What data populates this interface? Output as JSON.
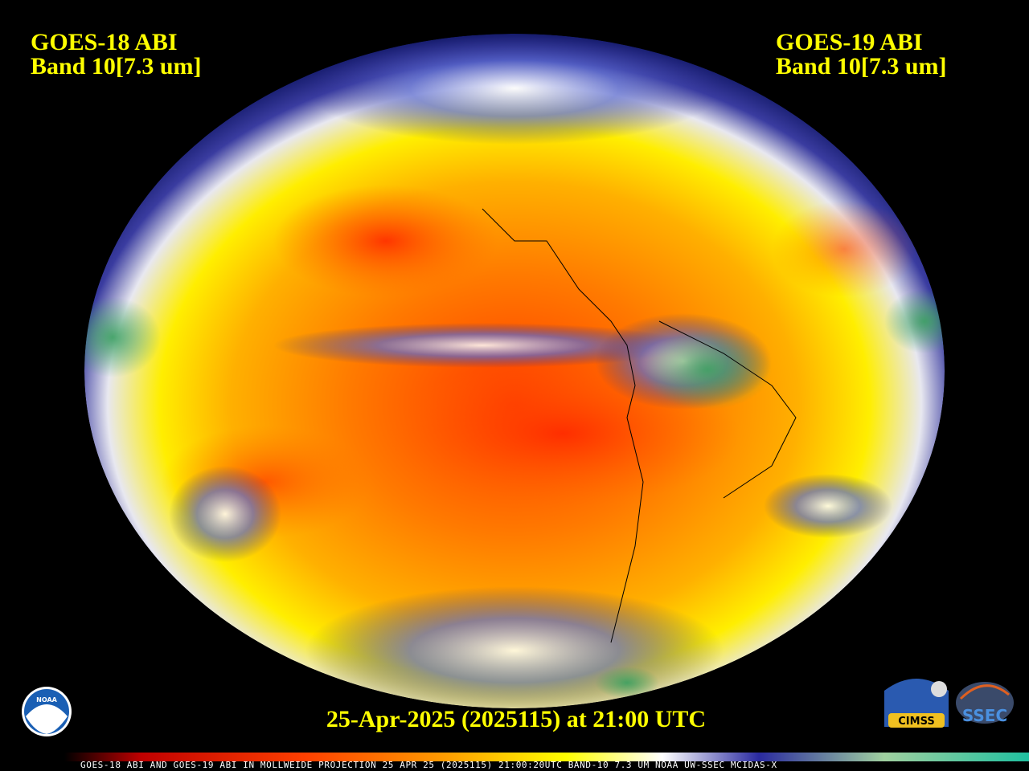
{
  "header": {
    "left": {
      "line1": "GOES-18 ABI",
      "line2": "Band 10[7.3 um]"
    },
    "right": {
      "line1": "GOES-19 ABI",
      "line2": "Band 10[7.3 um]"
    }
  },
  "footer": {
    "date": "25-Apr-2025 (2025115) at 21:00 UTC",
    "colorbar_caption": "GOES-18 ABI AND GOES-19 ABI IN MOLLWEIDE PROJECTION 25 APR 25 (2025115) 21:00:20UTC BAND-10 7.3 UM NOAA UW-SSEC MCIDAS-X"
  },
  "logos": {
    "noaa": "NOAA",
    "cimss": "CIMSS",
    "ssec": "SSEC"
  }
}
